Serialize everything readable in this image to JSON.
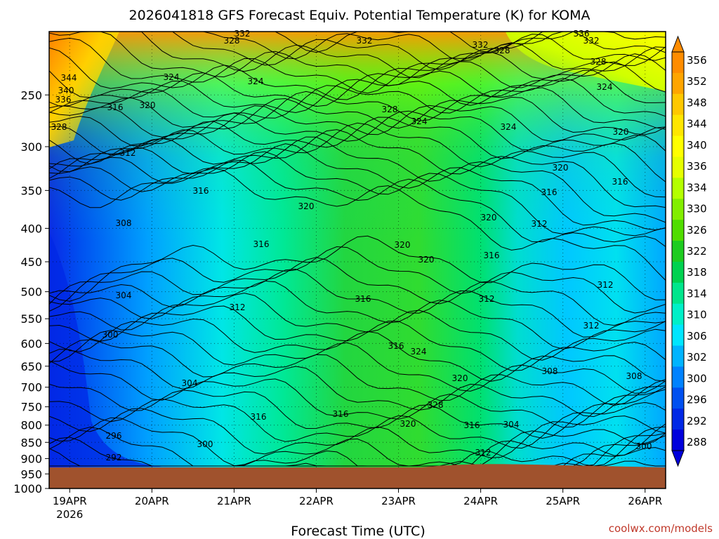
{
  "chart_data": {
    "type": "heatmap",
    "title": "2026041818 GFS Forecast Equiv. Potential Temperature (K) for KOMA",
    "xlabel": "Forecast Time (UTC)",
    "credit": "coolwx.com/models",
    "x_ticks": [
      "19APR",
      "20APR",
      "21APR",
      "22APR",
      "23APR",
      "24APR",
      "25APR",
      "26APR"
    ],
    "x_tick_sub": "2026",
    "x_range": [
      "2026-04-18T18",
      "2026-04-26T06"
    ],
    "y_ticks": [
      250,
      300,
      350,
      400,
      450,
      500,
      550,
      600,
      650,
      700,
      750,
      800,
      850,
      900,
      950,
      1000
    ],
    "y_range": [
      200,
      1000
    ],
    "y_scale": "log",
    "grid": true,
    "colorbar": {
      "labels": [
        356,
        352,
        348,
        344,
        340,
        336,
        334,
        330,
        326,
        322,
        318,
        314,
        310,
        306,
        302,
        300,
        296,
        292,
        288
      ],
      "colors": [
        "#ff8c00",
        "#ffa500",
        "#ffc800",
        "#ffe600",
        "#ffff00",
        "#e6ff00",
        "#b4ff00",
        "#82ee00",
        "#50dd00",
        "#1ecc20",
        "#00d250",
        "#00e68c",
        "#00f0c8",
        "#00e6ff",
        "#00b4ff",
        "#0082ff",
        "#0050f0",
        "#0028e6",
        "#0000dc"
      ]
    },
    "terrain_color": "#a0522d",
    "contour_labels": [
      "332",
      "328",
      "332",
      "332",
      "328",
      "336",
      "332",
      "328",
      "344",
      "340",
      "336",
      "324",
      "324",
      "328",
      "324",
      "324",
      "316",
      "320",
      "328",
      "324",
      "320",
      "312",
      "320",
      "316",
      "316",
      "320",
      "320",
      "316",
      "308",
      "312",
      "316",
      "320",
      "320",
      "316",
      "304",
      "316",
      "312",
      "312",
      "312",
      "300",
      "316",
      "324",
      "312",
      "304",
      "320",
      "308",
      "308",
      "328",
      "316",
      "316",
      "320",
      "316",
      "304",
      "296",
      "300",
      "300",
      "292",
      "312"
    ]
  }
}
